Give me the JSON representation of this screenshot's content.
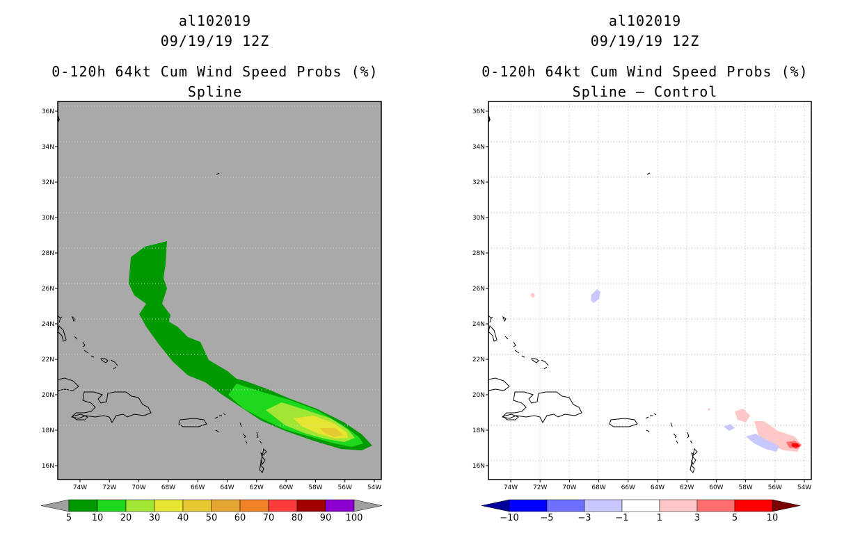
{
  "left": {
    "storm_id": "al102019",
    "datetime": "09/19/19 12Z",
    "title": "0-120h 64kt Cum Wind Speed Probs (%)",
    "subtitle": "Spline",
    "colorbar": {
      "labels": [
        "5",
        "10",
        "20",
        "30",
        "40",
        "50",
        "60",
        "70",
        "80",
        "90",
        "100"
      ],
      "colors": [
        "#009a00",
        "#1ed81e",
        "#a0e632",
        "#e6e632",
        "#e6c832",
        "#e6a632",
        "#f08228",
        "#fa3c3c",
        "#a00000",
        "#8c00d0"
      ],
      "under_color": "#a0a0a0",
      "over_color": "#a0a0a0"
    }
  },
  "right": {
    "storm_id": "al102019",
    "datetime": "09/19/19 12Z",
    "title": "0-120h 64kt Cum Wind Speed Probs (%)",
    "subtitle": "Spline – Control",
    "colorbar": {
      "labels": [
        "−10",
        "−5",
        "−3",
        "−1",
        "1",
        "3",
        "5",
        "10"
      ],
      "colors": [
        "#0000ff",
        "#6e6eff",
        "#c8c8ff",
        "#ffffff",
        "#ffc8c8",
        "#ff6e6e",
        "#ff0000"
      ],
      "under_color": "#00009b",
      "over_color": "#780000"
    }
  },
  "map": {
    "lat_labels": [
      "36N",
      "34N",
      "32N",
      "30N",
      "28N",
      "26N",
      "24N",
      "22N",
      "20N",
      "18N",
      "16N"
    ],
    "lon_labels": [
      "74W",
      "72W",
      "70W",
      "68W",
      "66W",
      "64W",
      "62W",
      "60W",
      "58W",
      "56W",
      "54W"
    ],
    "background_color": "#a9a9a9"
  }
}
